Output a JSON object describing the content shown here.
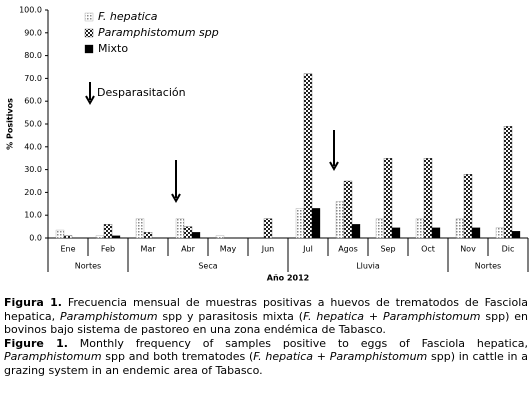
{
  "chart_data": {
    "type": "bar",
    "categories": [
      "Ene",
      "Feb",
      "Mar",
      "Abr",
      "May",
      "Jun",
      "Jul",
      "Agos",
      "Sep",
      "Oct",
      "Nov",
      "Dic"
    ],
    "groups": [
      {
        "label": "Nortes",
        "span": 2
      },
      {
        "label": "Seca",
        "span": 4
      },
      {
        "label": "Lluvia",
        "span": 4
      },
      {
        "label": "Nortes",
        "span": 2
      }
    ],
    "series": [
      {
        "name": "F. hepatica",
        "color": "#888888",
        "values": [
          3.5,
          1,
          8.5,
          8.5,
          1,
          0,
          13,
          16,
          8.5,
          8.5,
          8.5,
          4.5
        ]
      },
      {
        "name": "Paramphistomum spp",
        "color": "#222222",
        "values": [
          1,
          6,
          2.5,
          5,
          0,
          8.5,
          72,
          25,
          35,
          35,
          28,
          49
        ]
      },
      {
        "name": "Mixto",
        "color": "#000000",
        "values": [
          0,
          1,
          0,
          2.5,
          0,
          0,
          13,
          6,
          4.5,
          4.5,
          4.5,
          3
        ]
      }
    ],
    "ylim": [
      0,
      100
    ],
    "yticks": [
      {
        "value": 0,
        "label": "0.0"
      },
      {
        "value": 10,
        "label": "10.0"
      },
      {
        "value": 20,
        "label": "20.0"
      },
      {
        "value": 30,
        "label": "30.0"
      },
      {
        "value": 40,
        "label": "40.0"
      },
      {
        "value": 50,
        "label": "50.0"
      },
      {
        "value": 60,
        "label": "60.0"
      },
      {
        "value": 70,
        "label": "70.0"
      },
      {
        "value": 80,
        "label": "80.0"
      },
      {
        "value": 90,
        "label": "90.0"
      },
      {
        "value": 100,
        "label": "100.0"
      }
    ],
    "y_label": "% Positivos",
    "x_label": "Año 2012",
    "annotation": "Desparasitación",
    "grid": false
  },
  "caption": {
    "spanish": [
      {
        "text": "Figura 1.",
        "style": "bold"
      },
      {
        "text": " Frecuencia mensual de muestras positivas a huevos de trematodos de Fasciola hepatica, ",
        "style": "normal"
      },
      {
        "text": "Paramphistomum",
        "style": "italic"
      },
      {
        "text": " spp y parasitosis mixta (",
        "style": "normal"
      },
      {
        "text": "F. hepatica",
        "style": "italic"
      },
      {
        "text": " + ",
        "style": "normal"
      },
      {
        "text": "Paramphistomum",
        "style": "italic"
      },
      {
        "text": " spp) en bovinos bajo sistema de pastoreo en una zona endémica de Tabasco.",
        "style": "normal"
      }
    ],
    "english": [
      {
        "text": "Figure 1.",
        "style": "bold"
      },
      {
        "text": " Monthly frequency of samples positive to eggs of Fasciola hepatica, ",
        "style": "normal"
      },
      {
        "text": "Paramphistomum",
        "style": "italic"
      },
      {
        "text": " spp and both trematodes (",
        "style": "normal"
      },
      {
        "text": "F. hepatica",
        "style": "italic"
      },
      {
        "text": " + ",
        "style": "normal"
      },
      {
        "text": "Paramphistomum",
        "style": "italic"
      },
      {
        "text": " spp) in cattle in a grazing system in an endemic area of Tabasco.",
        "style": "normal"
      }
    ]
  }
}
